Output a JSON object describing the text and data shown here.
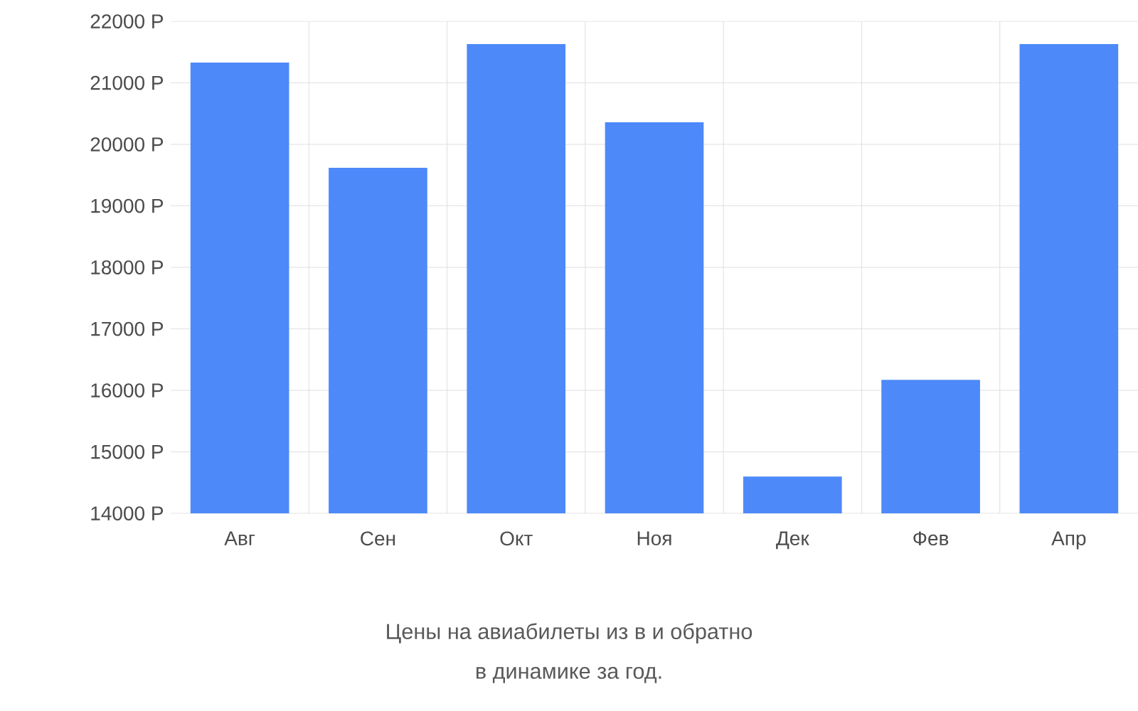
{
  "chart_data": {
    "type": "bar",
    "categories": [
      "Авг",
      "Сен",
      "Окт",
      "Ноя",
      "Дек",
      "Фев",
      "Апр"
    ],
    "values": [
      21330,
      19620,
      21630,
      20360,
      14600,
      16170,
      21630
    ],
    "color": "#4d89f9",
    "ylim": [
      14000,
      22000
    ],
    "yticks": [
      {
        "value": 14000,
        "label": "14000 Р"
      },
      {
        "value": 15000,
        "label": "15000 Р"
      },
      {
        "value": 16000,
        "label": "16000 Р"
      },
      {
        "value": 17000,
        "label": "17000 Р"
      },
      {
        "value": 18000,
        "label": "18000 Р"
      },
      {
        "value": 19000,
        "label": "19000 Р"
      },
      {
        "value": 20000,
        "label": "20000 Р"
      },
      {
        "value": 21000,
        "label": "21000 Р"
      },
      {
        "value": 22000,
        "label": "22000 Р"
      }
    ],
    "grid": true,
    "annotations": [
      "Цены на авиабилеты из в и обратно",
      "в динамике за год."
    ]
  }
}
